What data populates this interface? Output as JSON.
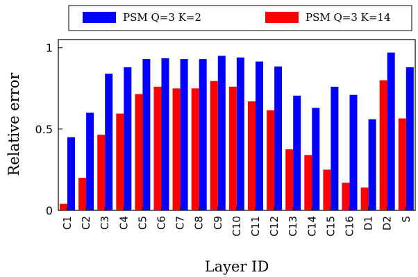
{
  "chart_data": {
    "type": "bar",
    "xlabel": "Layer ID",
    "ylabel": "Relative error",
    "ylim": [
      0,
      1.05
    ],
    "yticks": [
      0,
      0.5,
      1
    ],
    "ytick_labels": [
      "0",
      "0.5",
      "1"
    ],
    "grid": false,
    "legend_position": "top",
    "categories": [
      "C1",
      "C2",
      "C3",
      "C4",
      "C5",
      "C6",
      "C7",
      "C8",
      "C9",
      "C10",
      "C11",
      "C12",
      "C13",
      "C14",
      "C15",
      "C16",
      "D1",
      "D2",
      "S"
    ],
    "series": [
      {
        "name": "PSM Q=3 K=2",
        "color": "#0000ff",
        "values": [
          0.45,
          0.6,
          0.84,
          0.88,
          0.93,
          0.935,
          0.93,
          0.93,
          0.95,
          0.94,
          0.915,
          0.885,
          0.705,
          0.63,
          0.76,
          0.71,
          0.56,
          0.97,
          0.88
        ]
      },
      {
        "name": "PSM Q=3 K=14",
        "color": "#ff0000",
        "values": [
          0.04,
          0.2,
          0.465,
          0.595,
          0.715,
          0.76,
          0.75,
          0.75,
          0.795,
          0.76,
          0.67,
          0.615,
          0.375,
          0.34,
          0.25,
          0.17,
          0.14,
          0.8,
          0.565
        ]
      }
    ]
  }
}
